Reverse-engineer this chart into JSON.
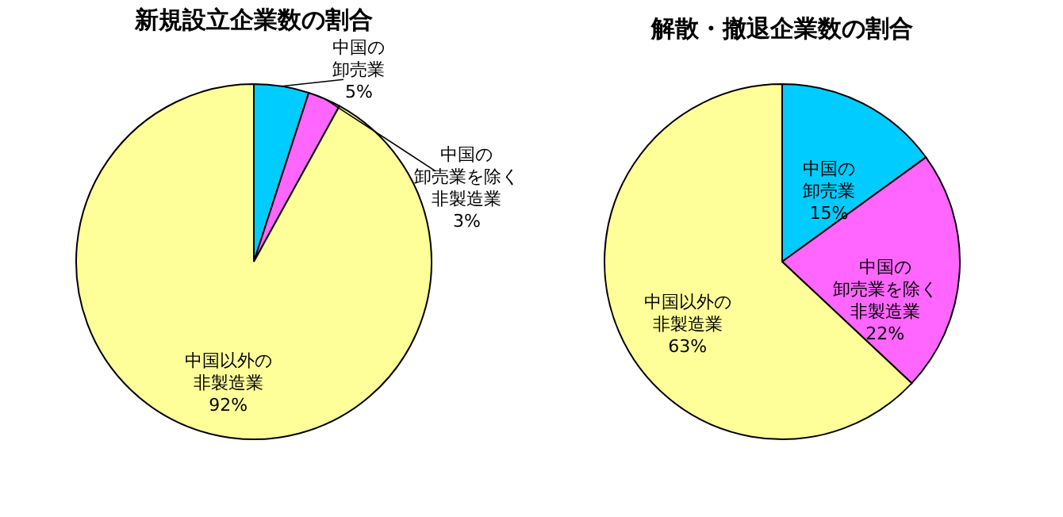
{
  "chart_data": [
    {
      "type": "pie",
      "title": "新規設立企業数の割合",
      "categories": [
        "中国の卸売業",
        "中国の卸売業を除く非製造業",
        "中国以外の非製造業"
      ],
      "values": [
        5,
        3,
        92
      ],
      "colors": [
        "#00ccff",
        "#ff66ff",
        "#ffff99"
      ],
      "value_labels": [
        "5%",
        "3%",
        "92%"
      ]
    },
    {
      "type": "pie",
      "title": "解散・撤退企業数の割合",
      "categories": [
        "中国の卸売業",
        "中国の卸売業を除く非製造業",
        "中国以外の非製造業"
      ],
      "values": [
        15,
        22,
        63
      ],
      "colors": [
        "#00ccff",
        "#ff66ff",
        "#ffff99"
      ],
      "value_labels": [
        "15%",
        "22%",
        "63%"
      ]
    }
  ]
}
